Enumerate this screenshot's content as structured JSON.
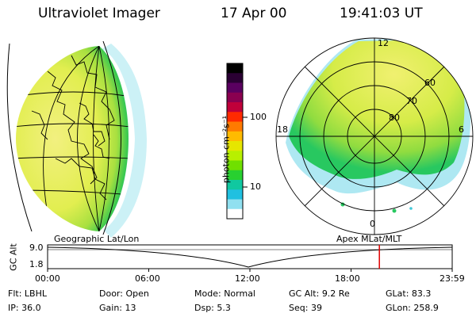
{
  "header": {
    "instrument": "Ultraviolet Imager",
    "date": "17 Apr 00",
    "time": "19:41:03 UT"
  },
  "colorbar": {
    "unit_label": "photon cm⁻²s⁻¹",
    "ticks": [
      "100",
      "10"
    ],
    "colors": [
      "#000000",
      "#2a0033",
      "#5a0060",
      "#8a0050",
      "#c0003a",
      "#ff2a00",
      "#ff7a00",
      "#ffbb00",
      "#e6e600",
      "#b8f000",
      "#70e000",
      "#28d030",
      "#10c8a0",
      "#20c0e0",
      "#90e0f0",
      "#ffffff"
    ]
  },
  "polar_map": {
    "mlt_labels": [
      "12",
      "18",
      "6",
      "0"
    ],
    "lat_labels": [
      "60",
      "70",
      "80"
    ]
  },
  "map_labels": {
    "left": "Geographic Lat/Lon",
    "right": "Apex  MLat/MLT"
  },
  "altitude_strip": {
    "axis_label": "GC Alt",
    "y_ticks": [
      "9.0",
      "1.8"
    ],
    "x_ticks": [
      "00:00",
      "06:00",
      "12:00",
      "18:00",
      "23:59"
    ],
    "current_time_hours": 19.68,
    "marker_color": "#e00000"
  },
  "info": {
    "row1": [
      {
        "key": "Flt:",
        "value": "LBHL"
      },
      {
        "key": "Door:",
        "value": "Open"
      },
      {
        "key": "Mode:",
        "value": "Normal"
      },
      {
        "key": "GC Alt:",
        "value": "9.2 Re"
      },
      {
        "key": "GLat:",
        "value": "83.3"
      }
    ],
    "row2": [
      {
        "key": "IP:",
        "value": "36.0"
      },
      {
        "key": "Gain:",
        "value": "13"
      },
      {
        "key": "Dsp:",
        "value": "5.3"
      },
      {
        "key": "Seq:",
        "value": "39"
      },
      {
        "key": "GLon:",
        "value": "258.9"
      }
    ]
  }
}
